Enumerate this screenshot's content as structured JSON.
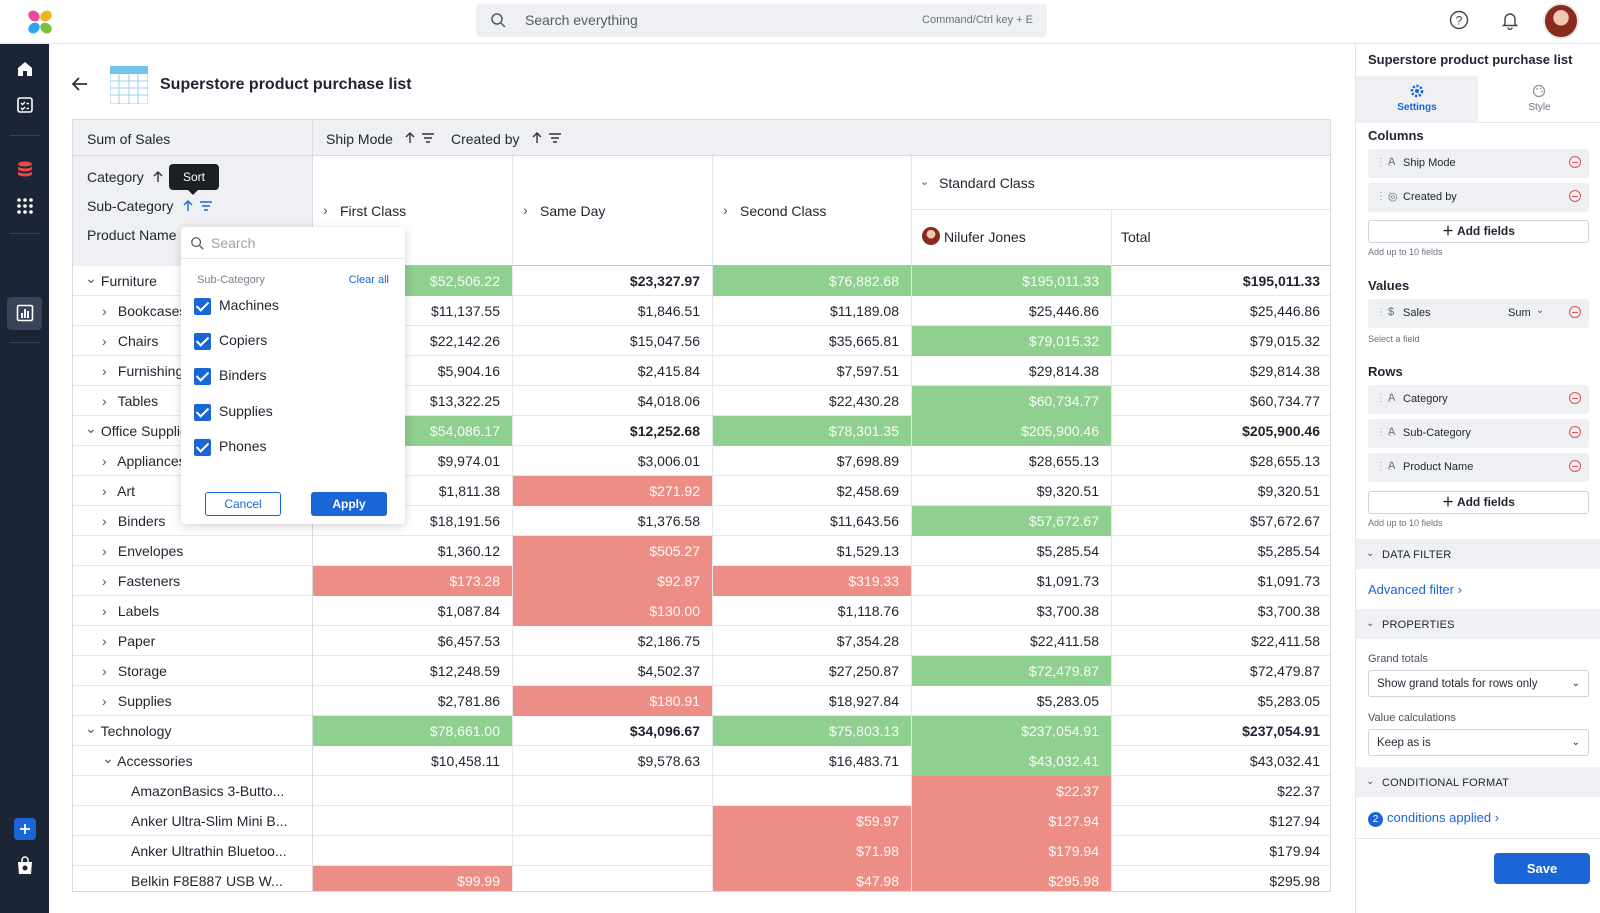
{
  "search": {
    "placeholder": "Search everything",
    "shortcut": "Command/Ctrl key + E"
  },
  "page": {
    "title": "Superstore product purchase list"
  },
  "pivot": {
    "value_header": "Sum of Sales",
    "column_fields": [
      "Ship Mode",
      "Created by"
    ],
    "row_fields": [
      "Category",
      "Sub-Category",
      "Product Name"
    ],
    "columns": [
      "First Class",
      "Same Day",
      "Second Class",
      "Standard Class"
    ],
    "sub_column_user": "Nilufer Jones",
    "total_label": "Total",
    "rows": [
      {
        "label": "Furniture",
        "level": 0,
        "exp": "down",
        "bold": false,
        "v": [
          "$52,506.22",
          "$23,327.97",
          "$76,882.68",
          "$195,011.33",
          "$195,011.33"
        ],
        "c": [
          "g",
          "",
          "g",
          "g",
          ""
        ],
        "b": true
      },
      {
        "label": "Bookcases",
        "level": 1,
        "exp": "right",
        "v": [
          "$11,137.55",
          "$1,846.51",
          "$11,189.08",
          "$25,446.86",
          "$25,446.86"
        ],
        "c": [
          "",
          "",
          "",
          "",
          ""
        ]
      },
      {
        "label": "Chairs",
        "level": 1,
        "exp": "right",
        "v": [
          "$22,142.26",
          "$15,047.56",
          "$35,665.81",
          "$79,015.32",
          "$79,015.32"
        ],
        "c": [
          "",
          "",
          "",
          "g",
          ""
        ]
      },
      {
        "label": "Furnishings",
        "level": 1,
        "exp": "right",
        "v": [
          "$5,904.16",
          "$2,415.84",
          "$7,597.51",
          "$29,814.38",
          "$29,814.38"
        ],
        "c": [
          "",
          "",
          "",
          "",
          ""
        ]
      },
      {
        "label": "Tables",
        "level": 1,
        "exp": "right",
        "v": [
          "$13,322.25",
          "$4,018.06",
          "$22,430.28",
          "$60,734.77",
          "$60,734.77"
        ],
        "c": [
          "",
          "",
          "",
          "g",
          ""
        ]
      },
      {
        "label": "Office Supplies",
        "level": 0,
        "exp": "down",
        "v": [
          "$54,086.17",
          "$12,252.68",
          "$78,301.35",
          "$205,900.46",
          "$205,900.46"
        ],
        "c": [
          "g",
          "",
          "g",
          "g",
          ""
        ],
        "b": true
      },
      {
        "label": "Appliances",
        "level": 1,
        "exp": "right",
        "v": [
          "$9,974.01",
          "$3,006.01",
          "$7,698.89",
          "$28,655.13",
          "$28,655.13"
        ],
        "c": [
          "",
          "",
          "",
          "",
          ""
        ]
      },
      {
        "label": "Art",
        "level": 1,
        "exp": "right",
        "v": [
          "$1,811.38",
          "$271.92",
          "$2,458.69",
          "$9,320.51",
          "$9,320.51"
        ],
        "c": [
          "",
          "r",
          "",
          "",
          ""
        ]
      },
      {
        "label": "Binders",
        "level": 1,
        "exp": "right",
        "v": [
          "$18,191.56",
          "$1,376.58",
          "$11,643.56",
          "$57,672.67",
          "$57,672.67"
        ],
        "c": [
          "",
          "",
          "",
          "g",
          ""
        ]
      },
      {
        "label": "Envelopes",
        "level": 1,
        "exp": "right",
        "v": [
          "$1,360.12",
          "$505.27",
          "$1,529.13",
          "$5,285.54",
          "$5,285.54"
        ],
        "c": [
          "",
          "r",
          "",
          "",
          ""
        ]
      },
      {
        "label": "Fasteners",
        "level": 1,
        "exp": "right",
        "v": [
          "$173.28",
          "$92.87",
          "$319.33",
          "$1,091.73",
          "$1,091.73"
        ],
        "c": [
          "r",
          "r",
          "r",
          "",
          ""
        ]
      },
      {
        "label": "Labels",
        "level": 1,
        "exp": "right",
        "v": [
          "$1,087.84",
          "$130.00",
          "$1,118.76",
          "$3,700.38",
          "$3,700.38"
        ],
        "c": [
          "",
          "r",
          "",
          "",
          ""
        ]
      },
      {
        "label": "Paper",
        "level": 1,
        "exp": "right",
        "v": [
          "$6,457.53",
          "$2,186.75",
          "$7,354.28",
          "$22,411.58",
          "$22,411.58"
        ],
        "c": [
          "",
          "",
          "",
          "",
          ""
        ]
      },
      {
        "label": "Storage",
        "level": 1,
        "exp": "right",
        "v": [
          "$12,248.59",
          "$4,502.37",
          "$27,250.87",
          "$72,479.87",
          "$72,479.87"
        ],
        "c": [
          "",
          "",
          "",
          "g",
          ""
        ]
      },
      {
        "label": "Supplies",
        "level": 1,
        "exp": "right",
        "v": [
          "$2,781.86",
          "$180.91",
          "$18,927.84",
          "$5,283.05",
          "$5,283.05"
        ],
        "c": [
          "",
          "r",
          "",
          "",
          ""
        ]
      },
      {
        "label": "Technology",
        "level": 0,
        "exp": "down",
        "v": [
          "$78,661.00",
          "$34,096.67",
          "$75,803.13",
          "$237,054.91",
          "$237,054.91"
        ],
        "c": [
          "g",
          "",
          "g",
          "g",
          ""
        ],
        "b": true
      },
      {
        "label": "Accessories",
        "level": 1,
        "exp": "down",
        "v": [
          "$10,458.11",
          "$9,578.63",
          "$16,483.71",
          "$43,032.41",
          "$43,032.41"
        ],
        "c": [
          "",
          "",
          "",
          "g",
          ""
        ]
      },
      {
        "label": "AmazonBasics 3-Butto...",
        "level": 2,
        "exp": "",
        "v": [
          "",
          "",
          "",
          "$22.37",
          "$22.37"
        ],
        "c": [
          "",
          "",
          "",
          "r",
          ""
        ]
      },
      {
        "label": "Anker Ultra-Slim Mini B...",
        "level": 2,
        "exp": "",
        "v": [
          "",
          "",
          "$59.97",
          "$127.94",
          "$127.94"
        ],
        "c": [
          "",
          "",
          "r",
          "r",
          ""
        ]
      },
      {
        "label": "Anker Ultrathin Bluetoo...",
        "level": 2,
        "exp": "",
        "v": [
          "",
          "",
          "$71.98",
          "$179.94",
          "$179.94"
        ],
        "c": [
          "",
          "",
          "r",
          "r",
          ""
        ]
      },
      {
        "label": "Belkin F8E887 USB W...",
        "level": 2,
        "exp": "",
        "v": [
          "$99.99",
          "",
          "$47.98",
          "$295.98",
          "$295.98"
        ],
        "c": [
          "r",
          "",
          "r",
          "r",
          ""
        ]
      }
    ]
  },
  "tooltip": {
    "text": "Sort"
  },
  "filter_popup": {
    "search_placeholder": "Search",
    "section_label": "Sub-Category",
    "clear_label": "Clear all",
    "items": [
      "Machines",
      "Copiers",
      "Binders",
      "Supplies",
      "Phones"
    ],
    "cancel_label": "Cancel",
    "apply_label": "Apply"
  },
  "right_panel": {
    "title": "Superstore product purchase list",
    "tabs": [
      "Settings",
      "Style"
    ],
    "columns_label": "Columns",
    "column_fields": [
      "Ship Mode",
      "Created by"
    ],
    "add_fields_label": "Add fields",
    "add_fields_hint": "Add up to 10 fields",
    "values_label": "Values",
    "value_field": "Sales",
    "value_agg": "Sum",
    "values_hint": "Select a field",
    "rows_label": "Rows",
    "row_fields": [
      "Category",
      "Sub-Category",
      "Product Name"
    ],
    "data_filter_label": "DATA FILTER",
    "advanced_filter_label": "Advanced filter",
    "properties_label": "PROPERTIES",
    "grand_totals_label": "Grand totals",
    "grand_totals_value": "Show grand totals for rows only",
    "value_calc_label": "Value calculations",
    "value_calc_value": "Keep as is",
    "cond_format_label": "CONDITIONAL FORMAT",
    "conditions_count": "2",
    "conditions_label": "conditions applied",
    "save_label": "Save"
  },
  "colors": {
    "accent": "#1a66d6",
    "nav_bg": "#1c2536",
    "positive": "#8fcf8f",
    "negative": "#ec8e86"
  }
}
